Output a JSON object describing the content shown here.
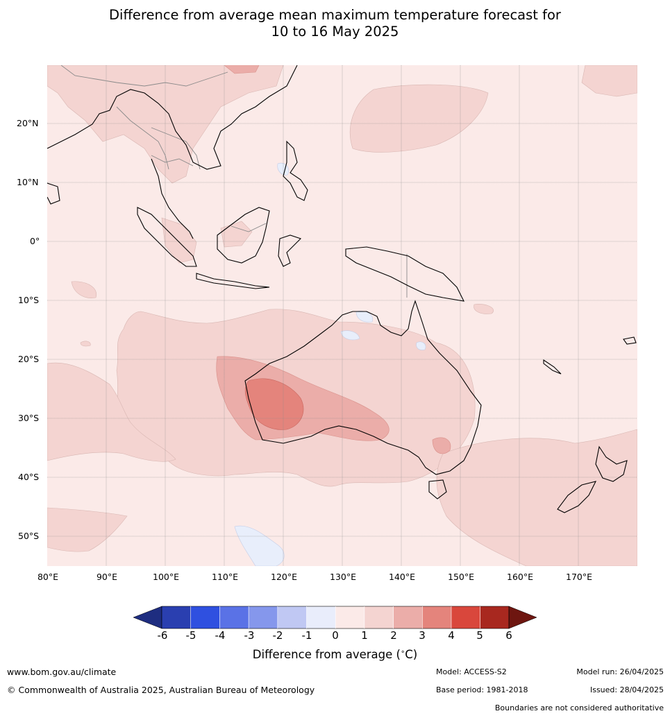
{
  "title": {
    "line1": "Difference from average mean maximum temperature forecast for",
    "line2": "10 to 16 May 2025"
  },
  "map": {
    "lat_ticks": [
      "20°N",
      "10°N",
      "0°",
      "10°S",
      "20°S",
      "30°S",
      "40°S",
      "50°S"
    ],
    "lon_ticks": [
      "80°E",
      "90°E",
      "100°E",
      "110°E",
      "120°E",
      "130°E",
      "140°E",
      "150°E",
      "160°E",
      "170°E"
    ],
    "colors": {
      "ocean_base": "#fbeae8",
      "anom_1_2": "#f4d4d1",
      "anom_2_3": "#ebada9",
      "anom_3_4": "#e4847c",
      "anom_neg_0_1": "#e8eefb",
      "coast": "#000000",
      "borders": "#8a8a8a",
      "grid": "#8a8a8a"
    }
  },
  "colorbar": {
    "ticks": [
      "-6",
      "-5",
      "-4",
      "-3",
      "-2",
      "-1",
      "0",
      "1",
      "2",
      "3",
      "4",
      "5",
      "6"
    ],
    "colors": [
      "#1e2d80",
      "#2a3fb0",
      "#2f50e0",
      "#5a72e6",
      "#8597ec",
      "#c0c8f3",
      "#e9edfb",
      "#fbeae8",
      "#f4d4d1",
      "#ebada9",
      "#e4847c",
      "#d9473c",
      "#a8281f",
      "#6e1610"
    ],
    "label_text": "Difference from average (",
    "label_unit": "C)",
    "label_deg": "∘"
  },
  "footer": {
    "website": "www.bom.gov.au/climate",
    "copyright": "© Commonwealth of Australia 2025, Australian Bureau of Meteorology",
    "model": "Model: ACCESS-S2",
    "base_period": "Base period: 1981-2018",
    "model_run": "Model run: 26/04/2025",
    "issued": "Issued: 28/04/2025",
    "disclaimer": "Boundaries are not considered authoritative"
  }
}
